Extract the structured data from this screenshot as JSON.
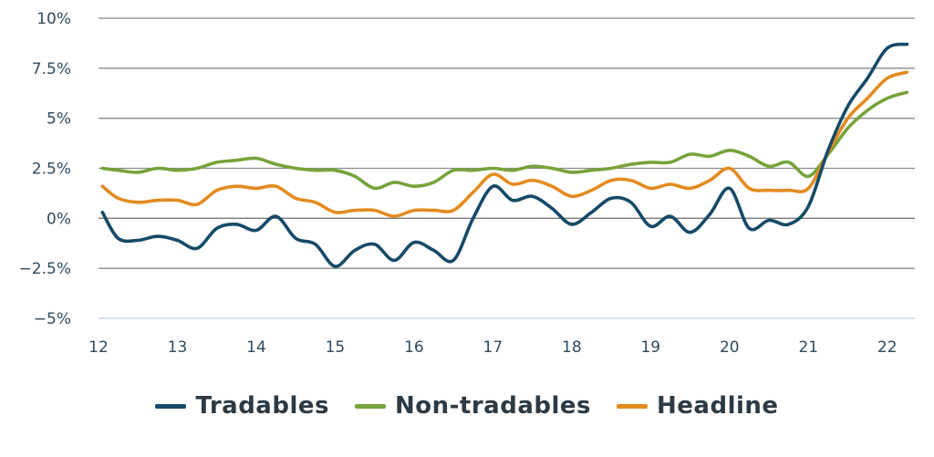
{
  "chart_data": {
    "type": "line",
    "title": "",
    "xlabel": "",
    "ylabel": "",
    "x_ticks": [
      "12",
      "13",
      "14",
      "15",
      "16",
      "17",
      "18",
      "19",
      "20",
      "21",
      "22"
    ],
    "y_ticks": [
      {
        "value": 10,
        "label": "10%"
      },
      {
        "value": 7.5,
        "label": "7.5%"
      },
      {
        "value": 5,
        "label": "5%"
      },
      {
        "value": 2.5,
        "label": "2.5%"
      },
      {
        "value": 0,
        "label": "0%"
      },
      {
        "value": -2.5,
        "label": "−2.5%"
      },
      {
        "value": -5,
        "label": "−5%"
      }
    ],
    "xlim": [
      12,
      22.35
    ],
    "ylim": [
      -5,
      10
    ],
    "legend_position": "bottom",
    "series": [
      {
        "name": "Tradables",
        "color": "#154a68",
        "points": [
          [
            12.05,
            0.3
          ],
          [
            12.25,
            -1.0
          ],
          [
            12.5,
            -1.1
          ],
          [
            12.75,
            -0.9
          ],
          [
            13.0,
            -1.1
          ],
          [
            13.25,
            -1.5
          ],
          [
            13.5,
            -0.5
          ],
          [
            13.75,
            -0.3
          ],
          [
            14.0,
            -0.6
          ],
          [
            14.25,
            0.1
          ],
          [
            14.5,
            -1.0
          ],
          [
            14.75,
            -1.3
          ],
          [
            15.0,
            -2.4
          ],
          [
            15.25,
            -1.6
          ],
          [
            15.5,
            -1.3
          ],
          [
            15.75,
            -2.1
          ],
          [
            16.0,
            -1.2
          ],
          [
            16.25,
            -1.6
          ],
          [
            16.5,
            -2.1
          ],
          [
            16.75,
            0.0
          ],
          [
            17.0,
            1.6
          ],
          [
            17.25,
            0.9
          ],
          [
            17.5,
            1.1
          ],
          [
            17.75,
            0.5
          ],
          [
            18.0,
            -0.3
          ],
          [
            18.25,
            0.3
          ],
          [
            18.5,
            1.0
          ],
          [
            18.75,
            0.8
          ],
          [
            19.0,
            -0.4
          ],
          [
            19.25,
            0.1
          ],
          [
            19.5,
            -0.7
          ],
          [
            19.75,
            0.2
          ],
          [
            20.0,
            1.5
          ],
          [
            20.25,
            -0.5
          ],
          [
            20.5,
            -0.1
          ],
          [
            20.75,
            -0.3
          ],
          [
            21.0,
            0.6
          ],
          [
            21.25,
            3.4
          ],
          [
            21.5,
            5.6
          ],
          [
            21.75,
            7.0
          ],
          [
            22.0,
            8.5
          ],
          [
            22.25,
            8.7
          ]
        ]
      },
      {
        "name": "Non-tradables",
        "color": "#76a33a",
        "points": [
          [
            12.05,
            2.5
          ],
          [
            12.25,
            2.4
          ],
          [
            12.5,
            2.3
          ],
          [
            12.75,
            2.5
          ],
          [
            13.0,
            2.4
          ],
          [
            13.25,
            2.5
          ],
          [
            13.5,
            2.8
          ],
          [
            13.75,
            2.9
          ],
          [
            14.0,
            3.0
          ],
          [
            14.25,
            2.7
          ],
          [
            14.5,
            2.5
          ],
          [
            14.75,
            2.4
          ],
          [
            15.0,
            2.4
          ],
          [
            15.25,
            2.1
          ],
          [
            15.5,
            1.5
          ],
          [
            15.75,
            1.8
          ],
          [
            16.0,
            1.6
          ],
          [
            16.25,
            1.8
          ],
          [
            16.5,
            2.4
          ],
          [
            16.75,
            2.4
          ],
          [
            17.0,
            2.5
          ],
          [
            17.25,
            2.4
          ],
          [
            17.5,
            2.6
          ],
          [
            17.75,
            2.5
          ],
          [
            18.0,
            2.3
          ],
          [
            18.25,
            2.4
          ],
          [
            18.5,
            2.5
          ],
          [
            18.75,
            2.7
          ],
          [
            19.0,
            2.8
          ],
          [
            19.25,
            2.8
          ],
          [
            19.5,
            3.2
          ],
          [
            19.75,
            3.1
          ],
          [
            20.0,
            3.4
          ],
          [
            20.25,
            3.1
          ],
          [
            20.5,
            2.6
          ],
          [
            20.75,
            2.8
          ],
          [
            21.0,
            2.1
          ],
          [
            21.25,
            3.2
          ],
          [
            21.5,
            4.5
          ],
          [
            21.75,
            5.4
          ],
          [
            22.0,
            6.0
          ],
          [
            22.25,
            6.3
          ]
        ]
      },
      {
        "name": "Headline",
        "color": "#e38b1f",
        "points": [
          [
            12.05,
            1.6
          ],
          [
            12.25,
            1.0
          ],
          [
            12.5,
            0.8
          ],
          [
            12.75,
            0.9
          ],
          [
            13.0,
            0.9
          ],
          [
            13.25,
            0.7
          ],
          [
            13.5,
            1.4
          ],
          [
            13.75,
            1.6
          ],
          [
            14.0,
            1.5
          ],
          [
            14.25,
            1.6
          ],
          [
            14.5,
            1.0
          ],
          [
            14.75,
            0.8
          ],
          [
            15.0,
            0.3
          ],
          [
            15.25,
            0.4
          ],
          [
            15.5,
            0.4
          ],
          [
            15.75,
            0.1
          ],
          [
            16.0,
            0.4
          ],
          [
            16.25,
            0.4
          ],
          [
            16.5,
            0.4
          ],
          [
            16.75,
            1.3
          ],
          [
            17.0,
            2.2
          ],
          [
            17.25,
            1.7
          ],
          [
            17.5,
            1.9
          ],
          [
            17.75,
            1.6
          ],
          [
            18.0,
            1.1
          ],
          [
            18.25,
            1.4
          ],
          [
            18.5,
            1.9
          ],
          [
            18.75,
            1.9
          ],
          [
            19.0,
            1.5
          ],
          [
            19.25,
            1.7
          ],
          [
            19.5,
            1.5
          ],
          [
            19.75,
            1.9
          ],
          [
            20.0,
            2.5
          ],
          [
            20.25,
            1.5
          ],
          [
            20.5,
            1.4
          ],
          [
            20.75,
            1.4
          ],
          [
            21.0,
            1.5
          ],
          [
            21.25,
            3.3
          ],
          [
            21.5,
            5.0
          ],
          [
            21.75,
            6.0
          ],
          [
            22.0,
            7.0
          ],
          [
            22.25,
            7.3
          ]
        ]
      }
    ]
  }
}
